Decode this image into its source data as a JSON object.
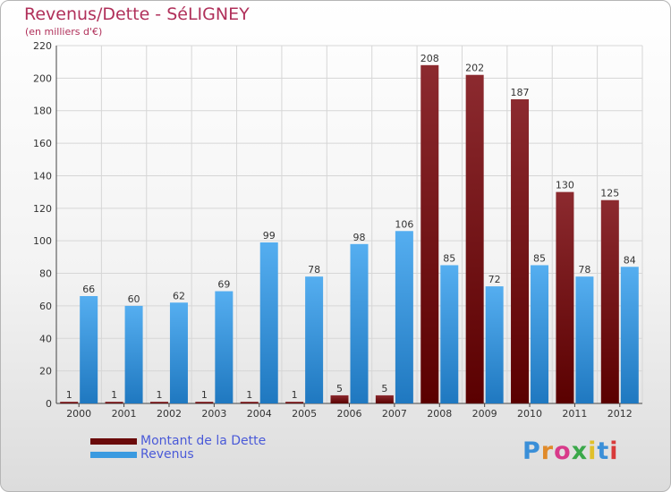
{
  "chart_data": {
    "type": "bar",
    "title": "Revenus/Dette - SéLIGNEY",
    "subtitle": "(en milliers d'€)",
    "categories": [
      "2000",
      "2001",
      "2002",
      "2003",
      "2004",
      "2005",
      "2006",
      "2007",
      "2008",
      "2009",
      "2010",
      "2011",
      "2012"
    ],
    "series": [
      {
        "name": "Montant de la Dette",
        "color": "#8b1a1a",
        "values": [
          1,
          1,
          1,
          1,
          1,
          1,
          5,
          5,
          208,
          202,
          187,
          130,
          125
        ]
      },
      {
        "name": "Revenus",
        "color": "#3a9ae0",
        "values": [
          66,
          60,
          62,
          69,
          99,
          78,
          98,
          106,
          85,
          72,
          85,
          78,
          84
        ]
      }
    ],
    "ylim": [
      0,
      220
    ],
    "yticks": [
      0,
      20,
      40,
      60,
      80,
      100,
      120,
      140,
      160,
      180,
      200,
      220
    ],
    "grid": true,
    "legend_position": "bottom-left"
  },
  "logo_text": "Proxiti"
}
